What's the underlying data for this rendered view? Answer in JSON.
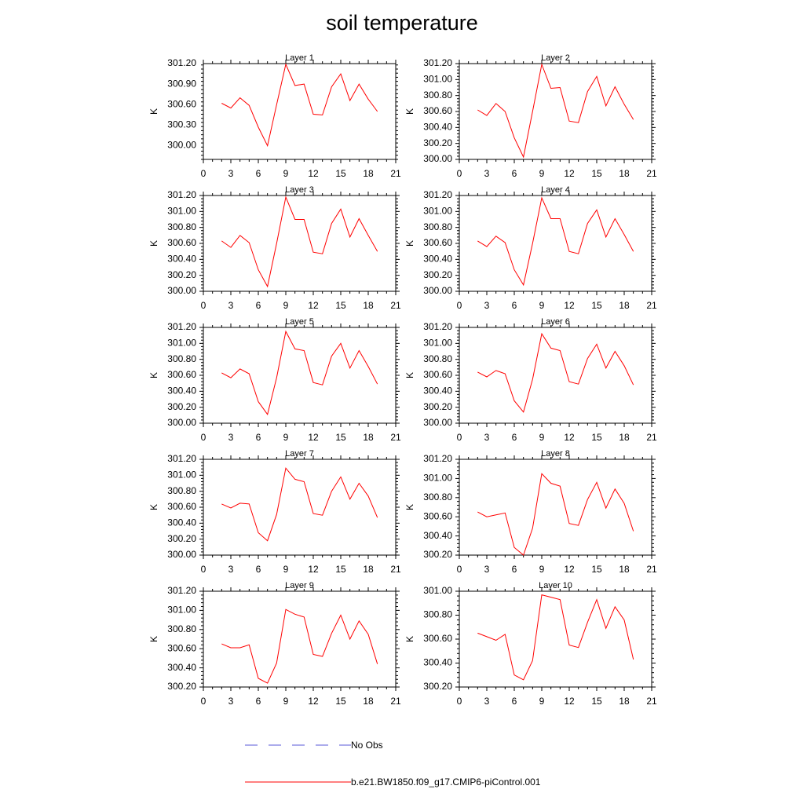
{
  "figure": {
    "title": "soil temperature",
    "legend": [
      {
        "label": "No Obs",
        "color": "#5a5ad8",
        "style": "dashed"
      },
      {
        "label": "b.e21.BW1850.f09_g17.CMIP6-piControl.001",
        "color": "#ff0000",
        "style": "solid"
      }
    ]
  },
  "chart_data": [
    {
      "type": "line",
      "title": "Layer 1",
      "xlabel": "",
      "ylabel": "K",
      "xlim": [
        0,
        21
      ],
      "ylim": [
        299.8,
        301.2
      ],
      "xticks": [
        0,
        3,
        6,
        9,
        12,
        15,
        18,
        21
      ],
      "yticks": [
        300.0,
        300.3,
        300.6,
        300.9,
        301.2
      ],
      "ydecimals": 2,
      "series": [
        {
          "color": "#ff0000",
          "x": [
            2,
            3,
            4,
            5,
            6,
            7,
            8,
            9,
            10,
            11,
            12,
            13,
            14,
            15,
            16,
            17,
            18,
            19
          ],
          "y": [
            300.62,
            300.55,
            300.7,
            300.59,
            300.27,
            300.0,
            300.6,
            301.19,
            300.88,
            300.9,
            300.46,
            300.45,
            300.86,
            301.05,
            300.66,
            300.9,
            300.68,
            300.5
          ]
        }
      ]
    },
    {
      "type": "line",
      "title": "Layer 2",
      "xlabel": "",
      "ylabel": "K",
      "xlim": [
        0,
        21
      ],
      "ylim": [
        300.0,
        301.2
      ],
      "xticks": [
        0,
        3,
        6,
        9,
        12,
        15,
        18,
        21
      ],
      "yticks": [
        300.0,
        300.2,
        300.4,
        300.6,
        300.8,
        301.0,
        301.2
      ],
      "ydecimals": 2,
      "series": [
        {
          "color": "#ff0000",
          "x": [
            2,
            3,
            4,
            5,
            6,
            7,
            8,
            9,
            10,
            11,
            12,
            13,
            14,
            15,
            16,
            17,
            18,
            19
          ],
          "y": [
            300.62,
            300.55,
            300.7,
            300.6,
            300.27,
            300.03,
            300.6,
            301.19,
            300.89,
            300.9,
            300.48,
            300.46,
            300.85,
            301.04,
            300.67,
            300.91,
            300.69,
            300.5
          ]
        }
      ]
    },
    {
      "type": "line",
      "title": "Layer 3",
      "xlabel": "",
      "ylabel": "K",
      "xlim": [
        0,
        21
      ],
      "ylim": [
        300.0,
        301.2
      ],
      "xticks": [
        0,
        3,
        6,
        9,
        12,
        15,
        18,
        21
      ],
      "yticks": [
        300.0,
        300.2,
        300.4,
        300.6,
        300.8,
        301.0,
        301.2
      ],
      "ydecimals": 2,
      "series": [
        {
          "color": "#ff0000",
          "x": [
            2,
            3,
            4,
            5,
            6,
            7,
            8,
            9,
            10,
            11,
            12,
            13,
            14,
            15,
            16,
            17,
            18,
            19
          ],
          "y": [
            300.63,
            300.55,
            300.7,
            300.61,
            300.27,
            300.06,
            300.6,
            301.18,
            300.9,
            300.9,
            300.49,
            300.47,
            300.85,
            301.03,
            300.68,
            300.91,
            300.7,
            300.5
          ]
        }
      ]
    },
    {
      "type": "line",
      "title": "Layer 4",
      "xlabel": "",
      "ylabel": "K",
      "xlim": [
        0,
        21
      ],
      "ylim": [
        300.0,
        301.2
      ],
      "xticks": [
        0,
        3,
        6,
        9,
        12,
        15,
        18,
        21
      ],
      "yticks": [
        300.0,
        300.2,
        300.4,
        300.6,
        300.8,
        301.0,
        301.2
      ],
      "ydecimals": 2,
      "series": [
        {
          "color": "#ff0000",
          "x": [
            2,
            3,
            4,
            5,
            6,
            7,
            8,
            9,
            10,
            11,
            12,
            13,
            14,
            15,
            16,
            17,
            18,
            19
          ],
          "y": [
            300.63,
            300.56,
            300.69,
            300.61,
            300.27,
            300.08,
            300.6,
            301.17,
            300.91,
            300.91,
            300.5,
            300.47,
            300.85,
            301.02,
            300.68,
            300.91,
            300.71,
            300.5
          ]
        }
      ]
    },
    {
      "type": "line",
      "title": "Layer 5",
      "xlabel": "",
      "ylabel": "K",
      "xlim": [
        0,
        21
      ],
      "ylim": [
        300.0,
        301.2
      ],
      "xticks": [
        0,
        3,
        6,
        9,
        12,
        15,
        18,
        21
      ],
      "yticks": [
        300.0,
        300.2,
        300.4,
        300.6,
        300.8,
        301.0,
        301.2
      ],
      "ydecimals": 2,
      "series": [
        {
          "color": "#ff0000",
          "x": [
            2,
            3,
            4,
            5,
            6,
            7,
            8,
            9,
            10,
            11,
            12,
            13,
            14,
            15,
            16,
            17,
            18,
            19
          ],
          "y": [
            300.63,
            300.57,
            300.68,
            300.62,
            300.27,
            300.11,
            300.57,
            301.15,
            300.93,
            300.91,
            300.51,
            300.48,
            300.84,
            301.0,
            300.69,
            300.91,
            300.71,
            300.49
          ]
        }
      ]
    },
    {
      "type": "line",
      "title": "Layer 6",
      "xlabel": "",
      "ylabel": "K",
      "xlim": [
        0,
        21
      ],
      "ylim": [
        300.0,
        301.2
      ],
      "xticks": [
        0,
        3,
        6,
        9,
        12,
        15,
        18,
        21
      ],
      "yticks": [
        300.0,
        300.2,
        300.4,
        300.6,
        300.8,
        301.0,
        301.2
      ],
      "ydecimals": 2,
      "series": [
        {
          "color": "#ff0000",
          "x": [
            2,
            3,
            4,
            5,
            6,
            7,
            8,
            9,
            10,
            11,
            12,
            13,
            14,
            15,
            16,
            17,
            18,
            19
          ],
          "y": [
            300.64,
            300.58,
            300.66,
            300.62,
            300.28,
            300.14,
            300.55,
            301.12,
            300.94,
            300.91,
            300.52,
            300.49,
            300.81,
            300.99,
            300.69,
            300.9,
            300.72,
            300.48
          ]
        }
      ]
    },
    {
      "type": "line",
      "title": "Layer 7",
      "xlabel": "",
      "ylabel": "K",
      "xlim": [
        0,
        21
      ],
      "ylim": [
        300.0,
        301.2
      ],
      "xticks": [
        0,
        3,
        6,
        9,
        12,
        15,
        18,
        21
      ],
      "yticks": [
        300.0,
        300.2,
        300.4,
        300.6,
        300.8,
        301.0,
        301.2
      ],
      "ydecimals": 2,
      "series": [
        {
          "color": "#ff0000",
          "x": [
            2,
            3,
            4,
            5,
            6,
            7,
            8,
            9,
            10,
            11,
            12,
            13,
            14,
            15,
            16,
            17,
            18,
            19
          ],
          "y": [
            300.64,
            300.59,
            300.65,
            300.64,
            300.28,
            300.18,
            300.51,
            301.09,
            300.95,
            300.92,
            300.52,
            300.5,
            300.8,
            300.98,
            300.7,
            300.9,
            300.74,
            300.47
          ]
        }
      ]
    },
    {
      "type": "line",
      "title": "Layer 8",
      "xlabel": "",
      "ylabel": "K",
      "xlim": [
        0,
        21
      ],
      "ylim": [
        300.2,
        301.2
      ],
      "xticks": [
        0,
        3,
        6,
        9,
        12,
        15,
        18,
        21
      ],
      "yticks": [
        300.2,
        300.4,
        300.6,
        300.8,
        301.0,
        301.2
      ],
      "ydecimals": 2,
      "series": [
        {
          "color": "#ff0000",
          "x": [
            2,
            3,
            4,
            5,
            6,
            7,
            8,
            9,
            10,
            11,
            12,
            13,
            14,
            15,
            16,
            17,
            18,
            19
          ],
          "y": [
            300.65,
            300.6,
            300.62,
            300.64,
            300.28,
            300.2,
            300.48,
            301.05,
            300.95,
            300.92,
            300.53,
            300.51,
            300.78,
            300.96,
            300.69,
            300.89,
            300.74,
            300.45
          ]
        }
      ]
    },
    {
      "type": "line",
      "title": "Layer 9",
      "xlabel": "",
      "ylabel": "K",
      "xlim": [
        0,
        21
      ],
      "ylim": [
        300.2,
        301.2
      ],
      "xticks": [
        0,
        3,
        6,
        9,
        12,
        15,
        18,
        21
      ],
      "yticks": [
        300.2,
        300.4,
        300.6,
        300.8,
        301.0,
        301.2
      ],
      "ydecimals": 2,
      "series": [
        {
          "color": "#ff0000",
          "x": [
            2,
            3,
            4,
            5,
            6,
            7,
            8,
            9,
            10,
            11,
            12,
            13,
            14,
            15,
            16,
            17,
            18,
            19
          ],
          "y": [
            300.65,
            300.61,
            300.61,
            300.64,
            300.29,
            300.24,
            300.45,
            301.01,
            300.96,
            300.93,
            300.54,
            300.52,
            300.76,
            300.95,
            300.7,
            300.89,
            300.75,
            300.44
          ]
        }
      ]
    },
    {
      "type": "line",
      "title": "Layer 10",
      "xlabel": "",
      "ylabel": "K",
      "xlim": [
        0,
        21
      ],
      "ylim": [
        300.2,
        301.0
      ],
      "xticks": [
        0,
        3,
        6,
        9,
        12,
        15,
        18,
        21
      ],
      "yticks": [
        300.2,
        300.4,
        300.6,
        300.8,
        301.0
      ],
      "ydecimals": 2,
      "series": [
        {
          "color": "#ff0000",
          "x": [
            2,
            3,
            4,
            5,
            6,
            7,
            8,
            9,
            10,
            11,
            12,
            13,
            14,
            15,
            16,
            17,
            18,
            19
          ],
          "y": [
            300.65,
            300.62,
            300.59,
            300.64,
            300.3,
            300.26,
            300.42,
            300.97,
            300.95,
            300.93,
            300.55,
            300.53,
            300.74,
            300.93,
            300.69,
            300.87,
            300.76,
            300.43
          ]
        }
      ]
    }
  ]
}
